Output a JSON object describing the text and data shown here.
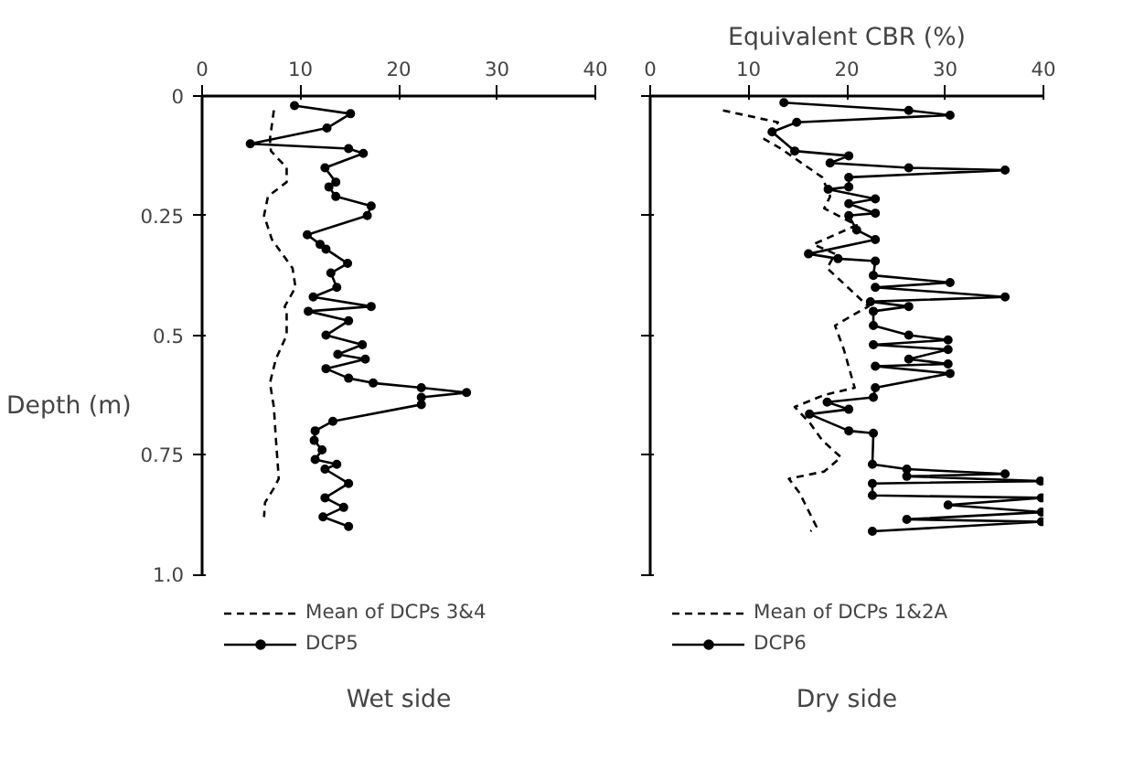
{
  "chart_data": [
    {
      "type": "line",
      "subtitle": "Wet side",
      "ylabel": "Depth (m)",
      "xlim": [
        0,
        40
      ],
      "xticks": [
        0,
        10,
        20,
        30,
        40
      ],
      "ylim": [
        1.0,
        0
      ],
      "yticks": [
        0,
        0.25,
        0.5,
        0.75,
        {
          "value": 1.0,
          "label": "1.0"
        }
      ],
      "grid": false,
      "legend": "bottom",
      "series": [
        {
          "name": "Mean of DCPs 3&4",
          "color": "#000000",
          "line_style": "dashed",
          "marker": "none",
          "x": [
            7.3,
            6.9,
            7.0,
            8.6,
            8.6,
            6.7,
            6.3,
            7.1,
            9.2,
            9.5,
            8.4,
            8.6,
            8.6,
            7.5,
            6.9,
            7.3,
            7.5,
            7.8,
            7.3,
            6.4,
            6.3
          ],
          "values": [
            0.03,
            0.09,
            0.115,
            0.15,
            0.18,
            0.21,
            0.25,
            0.3,
            0.36,
            0.4,
            0.44,
            0.45,
            0.5,
            0.55,
            0.6,
            0.65,
            0.715,
            0.8,
            0.82,
            0.85,
            0.88
          ]
        },
        {
          "name": "DCP5",
          "color": "#000000",
          "line_style": "solid",
          "marker": "circle",
          "x": [
            9.4,
            15.1,
            12.7,
            4.9,
            14.9,
            16.4,
            12.5,
            13.6,
            12.9,
            13.6,
            17.2,
            16.8,
            10.7,
            12.0,
            12.6,
            14.8,
            13.1,
            13.7,
            11.3,
            17.2,
            10.8,
            14.9,
            12.6,
            16.3,
            13.8,
            16.6,
            12.6,
            14.9,
            17.4,
            22.3,
            26.9,
            22.3,
            22.3,
            13.3,
            11.5,
            11.4,
            12.2,
            11.5,
            13.7,
            12.5,
            14.9,
            12.5,
            14.4,
            12.3,
            14.9
          ],
          "values": [
            0.02,
            0.037,
            0.067,
            0.1,
            0.11,
            0.12,
            0.15,
            0.18,
            0.19,
            0.21,
            0.23,
            0.25,
            0.29,
            0.31,
            0.32,
            0.35,
            0.37,
            0.4,
            0.42,
            0.44,
            0.45,
            0.47,
            0.5,
            0.52,
            0.54,
            0.55,
            0.57,
            0.59,
            0.6,
            0.61,
            0.62,
            0.63,
            0.645,
            0.68,
            0.7,
            0.72,
            0.74,
            0.76,
            0.77,
            0.78,
            0.81,
            0.84,
            0.86,
            0.88,
            0.9
          ]
        }
      ]
    },
    {
      "type": "line",
      "subtitle": "Dry side",
      "xlabel": "Equivalent CBR (%)",
      "xlim": [
        0,
        40
      ],
      "xticks": [
        0,
        10,
        20,
        30,
        40
      ],
      "ylim": [
        1.0,
        0
      ],
      "yticks": [
        0,
        0.25,
        0.5,
        0.75,
        1.0
      ],
      "tick_labels": "x",
      "grid": false,
      "legend": "bottom",
      "series": [
        {
          "name": "Mean of DCPs 1&2A",
          "color": "#000000",
          "line_style": "dashed",
          "marker": "none",
          "x": [
            7.4,
            13.0,
            11.6,
            13.3,
            17.5,
            18.3,
            17.7,
            21.0,
            16.6,
            18.8,
            18.0,
            22.2,
            21.3,
            18.8,
            19.7,
            20.8,
            17.7,
            14.7,
            16.3,
            17.5,
            19.4,
            17.7,
            14.1,
            15.2,
            16.9,
            16.3
          ],
          "values": [
            0.03,
            0.055,
            0.09,
            0.11,
            0.17,
            0.21,
            0.235,
            0.27,
            0.31,
            0.33,
            0.36,
            0.44,
            0.45,
            0.48,
            0.53,
            0.61,
            0.625,
            0.65,
            0.685,
            0.72,
            0.755,
            0.785,
            0.8,
            0.83,
            0.9,
            0.91
          ]
        },
        {
          "name": "DCP6",
          "color": "#000000",
          "line_style": "solid",
          "marker": "circle",
          "x": [
            13.6,
            26.3,
            30.5,
            14.9,
            12.4,
            14.7,
            20.2,
            18.3,
            26.3,
            36.1,
            20.2,
            20.2,
            18.1,
            22.9,
            20.2,
            22.9,
            20.2,
            21.0,
            22.9,
            16.1,
            19.1,
            22.9,
            22.7,
            30.5,
            22.9,
            36.1,
            22.4,
            26.3,
            22.7,
            22.7,
            26.3,
            30.3,
            22.7,
            30.3,
            26.3,
            30.3,
            22.9,
            30.5,
            22.9,
            22.7,
            18.0,
            20.2,
            16.2,
            20.2,
            22.7,
            22.6,
            26.1,
            36.1,
            26.1,
            39.7,
            22.6,
            22.6,
            39.8,
            30.3,
            39.8,
            26.1,
            39.8,
            22.6
          ],
          "values": [
            0.014,
            0.03,
            0.04,
            0.055,
            0.075,
            0.115,
            0.125,
            0.14,
            0.15,
            0.155,
            0.17,
            0.19,
            0.195,
            0.215,
            0.225,
            0.245,
            0.25,
            0.28,
            0.3,
            0.33,
            0.34,
            0.345,
            0.375,
            0.39,
            0.4,
            0.42,
            0.43,
            0.44,
            0.45,
            0.48,
            0.5,
            0.51,
            0.52,
            0.53,
            0.55,
            0.56,
            0.565,
            0.58,
            0.61,
            0.63,
            0.64,
            0.655,
            0.665,
            0.7,
            0.705,
            0.77,
            0.78,
            0.79,
            0.795,
            0.805,
            0.81,
            0.835,
            0.84,
            0.855,
            0.87,
            0.885,
            0.89,
            0.91
          ]
        }
      ]
    }
  ]
}
